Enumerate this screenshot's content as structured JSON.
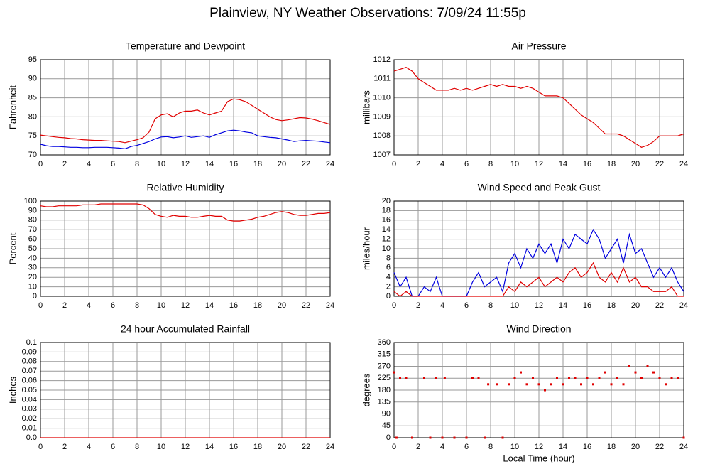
{
  "title": "Plainview, NY Weather Observations: 7/09/24 11:55p",
  "chart_data": [
    {
      "type": "line",
      "title": "Temperature and Dewpoint",
      "y_label": "Fahrenheit",
      "grid": true,
      "x": [
        0,
        0.5,
        1,
        1.5,
        2,
        2.5,
        3,
        3.5,
        4,
        4.5,
        5,
        5.5,
        6,
        6.5,
        7,
        7.5,
        8,
        8.5,
        9,
        9.5,
        10,
        10.5,
        11,
        11.5,
        12,
        12.5,
        13,
        13.5,
        14,
        14.5,
        15,
        15.5,
        16,
        16.5,
        17,
        17.5,
        18,
        18.5,
        19,
        19.5,
        20,
        20.5,
        21,
        21.5,
        22,
        22.5,
        23,
        23.5,
        24
      ],
      "series": [
        {
          "color": "#e00000",
          "values": [
            75.2,
            75,
            74.8,
            74.6,
            74.5,
            74.3,
            74.2,
            74,
            73.9,
            73.8,
            73.8,
            73.7,
            73.6,
            73.5,
            73.2,
            73.6,
            74,
            74.5,
            76,
            79.5,
            80.5,
            80.8,
            80,
            81,
            81.5,
            81.5,
            81.8,
            81,
            80.5,
            81,
            81.5,
            84,
            84.7,
            84.5,
            84,
            83,
            82,
            81,
            80,
            79.3,
            79,
            79.2,
            79.5,
            79.8,
            79.7,
            79.4,
            79,
            78.5,
            78
          ]
        },
        {
          "color": "#0000e0",
          "values": [
            72.8,
            72.4,
            72.2,
            72.2,
            72.1,
            72,
            72,
            71.9,
            71.9,
            72,
            72,
            72,
            71.9,
            71.8,
            71.6,
            72.2,
            72.5,
            73,
            73.5,
            74.2,
            74.7,
            74.8,
            74.5,
            74.7,
            75,
            74.6,
            74.8,
            75,
            74.6,
            75.3,
            75.8,
            76.3,
            76.5,
            76.3,
            76,
            75.8,
            75,
            74.8,
            74.6,
            74.5,
            74.2,
            73.9,
            73.5,
            73.7,
            73.8,
            73.7,
            73.6,
            73.4,
            73.2
          ]
        }
      ],
      "xlim": [
        0,
        24
      ],
      "xticks": [
        0,
        2,
        4,
        6,
        8,
        10,
        12,
        14,
        16,
        18,
        20,
        22,
        24
      ],
      "ylim": [
        70,
        95
      ],
      "yticks": [
        70,
        75,
        80,
        85,
        90,
        95
      ]
    },
    {
      "type": "line",
      "title": "Air Pressure",
      "y_label": "millibars",
      "grid": true,
      "x": [
        0,
        0.5,
        1,
        1.5,
        2,
        2.5,
        3,
        3.5,
        4,
        4.5,
        5,
        5.5,
        6,
        6.5,
        7,
        7.5,
        8,
        8.5,
        9,
        9.5,
        10,
        10.5,
        11,
        11.5,
        12,
        12.5,
        13,
        13.5,
        14,
        14.5,
        15,
        15.5,
        16,
        16.5,
        17,
        17.5,
        18,
        18.5,
        19,
        19.5,
        20,
        20.5,
        21,
        21.5,
        22,
        22.5,
        23,
        23.5,
        24
      ],
      "series": [
        {
          "color": "#e00000",
          "values": [
            1011.4,
            1011.5,
            1011.6,
            1011.4,
            1011,
            1010.8,
            1010.6,
            1010.4,
            1010.4,
            1010.4,
            1010.5,
            1010.4,
            1010.5,
            1010.4,
            1010.5,
            1010.6,
            1010.7,
            1010.6,
            1010.7,
            1010.6,
            1010.6,
            1010.5,
            1010.6,
            1010.5,
            1010.3,
            1010.1,
            1010.1,
            1010.1,
            1010,
            1009.7,
            1009.4,
            1009.1,
            1008.9,
            1008.7,
            1008.4,
            1008.1,
            1008.1,
            1008.1,
            1008,
            1007.8,
            1007.6,
            1007.4,
            1007.5,
            1007.7,
            1008,
            1008,
            1008,
            1008,
            1008.1
          ]
        }
      ],
      "xlim": [
        0,
        24
      ],
      "xticks": [
        0,
        2,
        4,
        6,
        8,
        10,
        12,
        14,
        16,
        18,
        20,
        22,
        24
      ],
      "ylim": [
        1007,
        1012
      ],
      "yticks": [
        1007,
        1008,
        1009,
        1010,
        1011,
        1012
      ]
    },
    {
      "type": "line",
      "title": "Relative Humidity",
      "y_label": "Percent",
      "grid": true,
      "x": [
        0,
        0.5,
        1,
        1.5,
        2,
        2.5,
        3,
        3.5,
        4,
        4.5,
        5,
        5.5,
        6,
        6.5,
        7,
        7.5,
        8,
        8.5,
        9,
        9.5,
        10,
        10.5,
        11,
        11.5,
        12,
        12.5,
        13,
        13.5,
        14,
        14.5,
        15,
        15.5,
        16,
        16.5,
        17,
        17.5,
        18,
        18.5,
        19,
        19.5,
        20,
        20.5,
        21,
        21.5,
        22,
        22.5,
        23,
        23.5,
        24
      ],
      "series": [
        {
          "color": "#e00000",
          "values": [
            95,
            94,
            94,
            95,
            95,
            95,
            95,
            96,
            96,
            96,
            97,
            97,
            97,
            97,
            97,
            97,
            97,
            96,
            92,
            86,
            84,
            83,
            85,
            84,
            84,
            83,
            83,
            84,
            85,
            84,
            84,
            80,
            79,
            79,
            80,
            81,
            83,
            84,
            86,
            88,
            89,
            88,
            86,
            85,
            85,
            86,
            87,
            87,
            88
          ]
        }
      ],
      "xlim": [
        0,
        24
      ],
      "xticks": [
        0,
        2,
        4,
        6,
        8,
        10,
        12,
        14,
        16,
        18,
        20,
        22,
        24
      ],
      "ylim": [
        0,
        100
      ],
      "yticks": [
        0,
        10,
        20,
        30,
        40,
        50,
        60,
        70,
        80,
        90,
        100
      ]
    },
    {
      "type": "line",
      "title": "Wind Speed and Peak Gust",
      "y_label": "miles/hour",
      "grid": true,
      "x": [
        0,
        0.5,
        1,
        1.5,
        2,
        2.5,
        3,
        3.5,
        4,
        4.5,
        5,
        5.5,
        6,
        6.5,
        7,
        7.5,
        8,
        8.5,
        9,
        9.5,
        10,
        10.5,
        11,
        11.5,
        12,
        12.5,
        13,
        13.5,
        14,
        14.5,
        15,
        15.5,
        16,
        16.5,
        17,
        17.5,
        18,
        18.5,
        19,
        19.5,
        20,
        20.5,
        21,
        21.5,
        22,
        22.5,
        23,
        23.5,
        24
      ],
      "series": [
        {
          "color": "#0000e0",
          "values": [
            5,
            2,
            4,
            0,
            0,
            2,
            1,
            4,
            0,
            0,
            0,
            0,
            0,
            3,
            5,
            2,
            3,
            4,
            1,
            7,
            9,
            6,
            10,
            8,
            11,
            9,
            11,
            7,
            12,
            10,
            13,
            12,
            11,
            14,
            12,
            8,
            10,
            12,
            7,
            13,
            9,
            10,
            7,
            4,
            6,
            4,
            6,
            3,
            1
          ]
        },
        {
          "color": "#e00000",
          "values": [
            1,
            0,
            1,
            0,
            0,
            0,
            0,
            0,
            0,
            0,
            0,
            0,
            0,
            0,
            0,
            0,
            0,
            0,
            0,
            2,
            1,
            3,
            2,
            3,
            4,
            2,
            3,
            4,
            3,
            5,
            6,
            4,
            5,
            7,
            4,
            3,
            5,
            3,
            6,
            3,
            4,
            2,
            2,
            1,
            1,
            1,
            2,
            0,
            0
          ]
        }
      ],
      "xlim": [
        0,
        24
      ],
      "xticks": [
        0,
        2,
        4,
        6,
        8,
        10,
        12,
        14,
        16,
        18,
        20,
        22,
        24
      ],
      "ylim": [
        0,
        20
      ],
      "yticks": [
        0,
        2,
        4,
        6,
        8,
        10,
        12,
        14,
        16,
        18,
        20
      ]
    },
    {
      "type": "line",
      "title": "24 hour Accumulated Rainfall",
      "y_label": "Inches",
      "grid": true,
      "x": [
        0,
        24
      ],
      "series": [
        {
          "color": "#e00000",
          "values": [
            0,
            0
          ]
        }
      ],
      "xlim": [
        0,
        24
      ],
      "xticks": [
        0,
        2,
        4,
        6,
        8,
        10,
        12,
        14,
        16,
        18,
        20,
        22,
        24
      ],
      "ylim": [
        0,
        0.1
      ],
      "yticks": [
        {
          "value": 0,
          "label": "0.0"
        },
        0.01,
        0.02,
        0.03,
        0.04,
        0.05,
        0.06,
        0.07,
        0.08,
        0.09,
        0.1
      ]
    },
    {
      "type": "scatter",
      "title": "Wind Direction",
      "y_label": "degrees",
      "x_label": "Local Time (hour)",
      "grid": true,
      "x": [
        0,
        0.2,
        0.5,
        1,
        1.5,
        2.5,
        3,
        3.5,
        4,
        4.2,
        5,
        6,
        6.5,
        7,
        7.5,
        7.8,
        8.5,
        9,
        9.5,
        10,
        10.5,
        11,
        11.5,
        12,
        12.5,
        13,
        13.5,
        14,
        14.5,
        15,
        15.5,
        16,
        16.5,
        17,
        17.5,
        18,
        18.5,
        19,
        19.5,
        20,
        20.5,
        21,
        21.5,
        22,
        22.5,
        23,
        23.5,
        24
      ],
      "series": [
        {
          "color": "#e00000",
          "values": [
            247,
            0,
            225,
            225,
            0,
            225,
            0,
            225,
            0,
            225,
            0,
            0,
            225,
            225,
            0,
            202,
            202,
            0,
            202,
            225,
            247,
            202,
            225,
            202,
            180,
            202,
            225,
            202,
            225,
            225,
            202,
            225,
            202,
            225,
            247,
            202,
            225,
            202,
            270,
            247,
            225,
            270,
            247,
            225,
            202,
            225,
            225,
            0
          ]
        }
      ],
      "xlim": [
        0,
        24
      ],
      "xticks": [
        0,
        2,
        4,
        6,
        8,
        10,
        12,
        14,
        16,
        18,
        20,
        22,
        24
      ],
      "ylim": [
        0,
        360
      ],
      "yticks": [
        0,
        45,
        90,
        135,
        180,
        225,
        270,
        315,
        360
      ]
    }
  ]
}
